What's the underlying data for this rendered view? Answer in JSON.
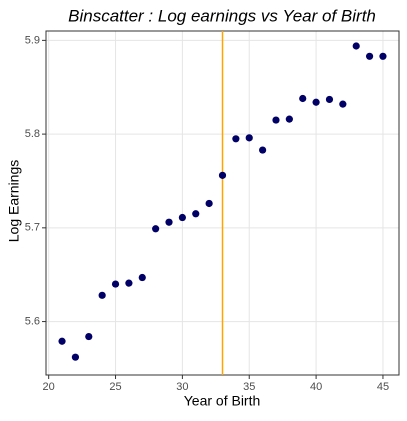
{
  "chart_data": {
    "type": "scatter",
    "title": "Binscatter : Log earnings vs Year of Birth",
    "x_label": "Year of Birth",
    "y_label": "Log Earnings",
    "x": [
      21,
      22,
      23,
      24,
      25,
      26,
      27,
      28,
      29,
      30,
      31,
      32,
      33,
      34,
      35,
      36,
      37,
      38,
      39,
      40,
      41,
      42,
      43,
      44,
      45
    ],
    "series": [
      {
        "name": "Log earnings",
        "color": "#000066",
        "values": [
          5.579,
          5.562,
          5.584,
          5.628,
          5.64,
          5.641,
          5.647,
          5.699,
          5.706,
          5.711,
          5.715,
          5.726,
          5.756,
          5.795,
          5.796,
          5.783,
          5.815,
          5.816,
          5.838,
          5.834,
          5.837,
          5.832,
          5.894,
          5.883,
          5.883
        ]
      }
    ],
    "xlim": [
      19.8,
      46.2
    ],
    "xticks": [
      20,
      25,
      30,
      35,
      40,
      45
    ],
    "ylim": [
      5.543,
      5.91
    ],
    "yticks": [
      5.6,
      5.7,
      5.8,
      5.9
    ],
    "grid": true,
    "vline": {
      "x": 33,
      "color": "#FFA500"
    }
  }
}
